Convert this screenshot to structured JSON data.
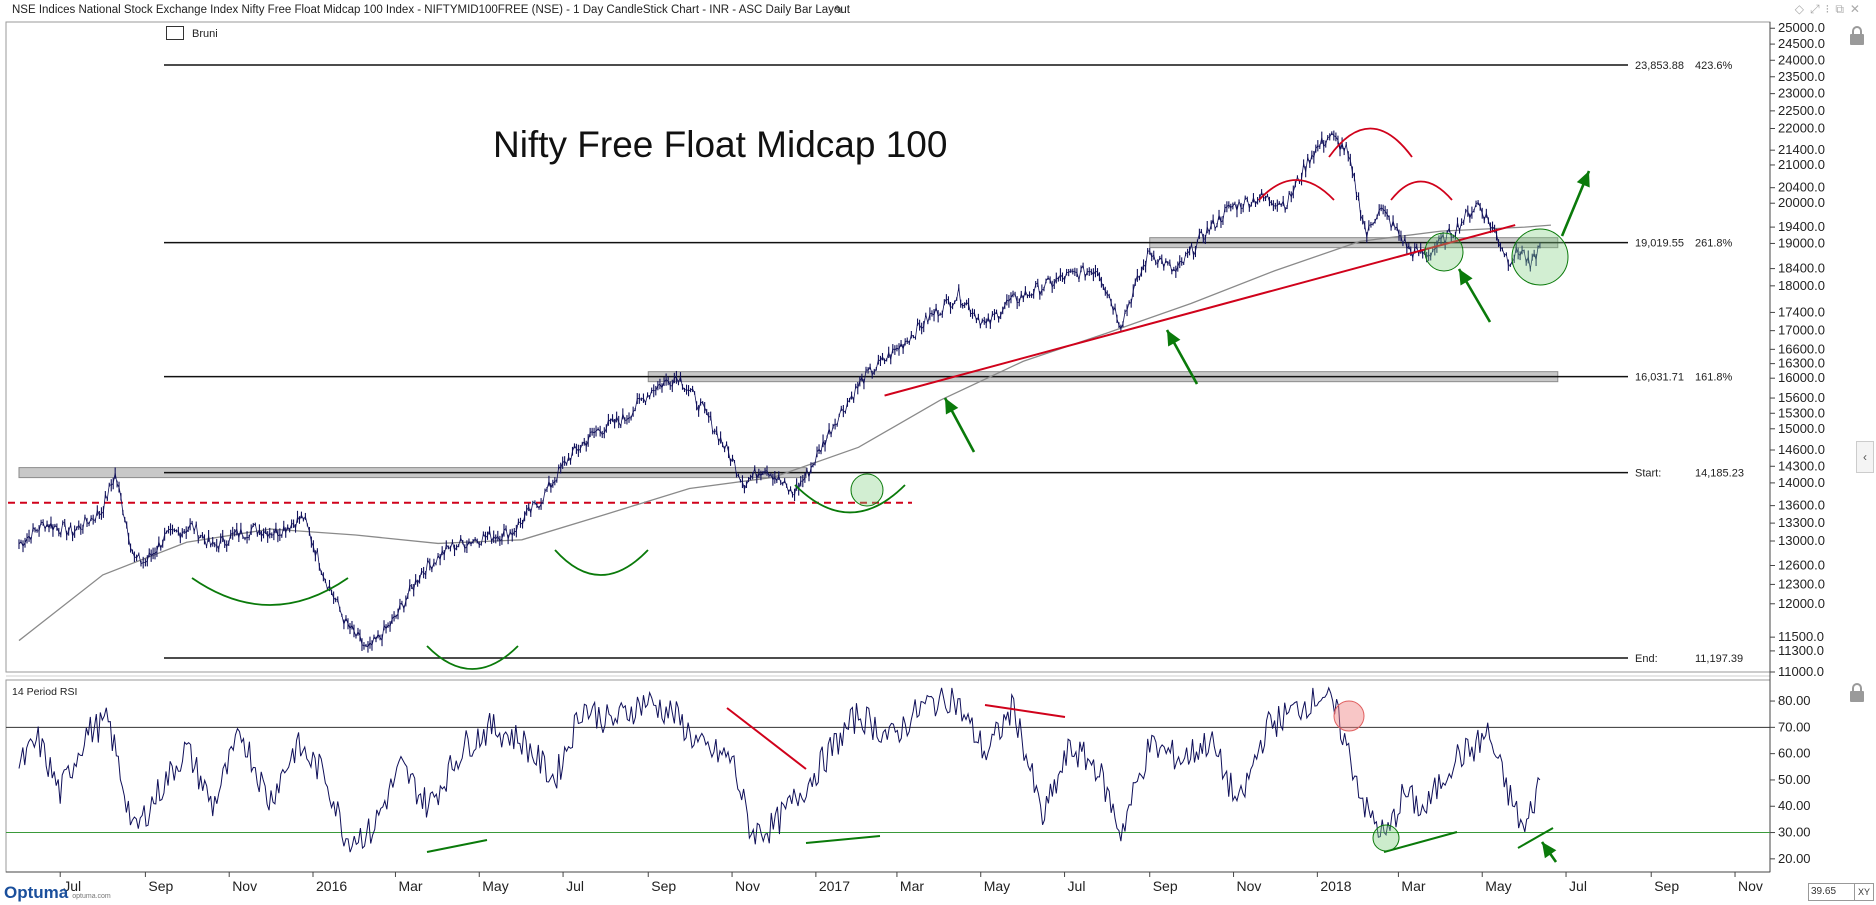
{
  "window": {
    "title": "NSE Indices National Stock Exchange Index Nifty Free Float Midcap 100 Index - NIFTYMID100FREE (NSE) - 1 Day CandleStick Chart - INR - ASC Daily Bar Layout"
  },
  "toolbar": {
    "bruni_label": "Bruni"
  },
  "footer": {
    "logo": "Optuma",
    "logo_sub": "optuma.com",
    "zoom": "39.65",
    "zoom_mode": "XY"
  },
  "colors": {
    "price": "#10105a",
    "ma": "#8a8a8a",
    "annotation_red": "#d0021b",
    "annotation_green": "#0a7a0a",
    "green_fill": "#7fcf7f",
    "red_fill": "#f08080",
    "band": "#c8c8c8"
  },
  "chart_data": [
    {
      "type": "line",
      "title": "Nifty Free Float Midcap 100",
      "xlabel": "",
      "ylabel": "",
      "y_scale": "log",
      "ylim": [
        11000,
        25200
      ],
      "x_ticks": [
        "Jul",
        "Sep",
        "Nov",
        "2016",
        "Mar",
        "May",
        "Jul",
        "Sep",
        "Nov",
        "2017",
        "Mar",
        "May",
        "Jul",
        "Sep",
        "Nov",
        "2018",
        "Mar",
        "May",
        "Jul",
        "Sep",
        "Nov"
      ],
      "y_ticks": [
        "25000.0",
        "24500.0",
        "24000.0",
        "23500.0",
        "23000.0",
        "22500.0",
        "22000.0",
        "21400.0",
        "21000.0",
        "20400.0",
        "20000.0",
        "19400.0",
        "19000.0",
        "18400.0",
        "18000.0",
        "17400.0",
        "17000.0",
        "16600.0",
        "16300.0",
        "16000.0",
        "15600.0",
        "15300.0",
        "15000.0",
        "14600.0",
        "14300.0",
        "14000.0",
        "13600.0",
        "13300.0",
        "13000.0",
        "12600.0",
        "12300.0",
        "12000.0",
        "11500.0",
        "11300.0",
        "11000.0"
      ],
      "series": [
        {
          "key": "price",
          "x": [
            "2015-06-01",
            "2015-06-20",
            "2015-07-10",
            "2015-07-31",
            "2015-08-10",
            "2015-08-24",
            "2015-09-01",
            "2015-09-15",
            "2015-10-05",
            "2015-10-20",
            "2015-11-05",
            "2015-11-20",
            "2015-12-05",
            "2015-12-25",
            "2016-01-10",
            "2016-01-25",
            "2016-02-10",
            "2016-02-29",
            "2016-03-20",
            "2016-04-10",
            "2016-05-01",
            "2016-05-25",
            "2016-06-15",
            "2016-07-05",
            "2016-07-25",
            "2016-08-15",
            "2016-09-05",
            "2016-09-23",
            "2016-10-15",
            "2016-11-10",
            "2016-11-25",
            "2016-12-15",
            "2016-12-27",
            "2017-01-15",
            "2017-02-05",
            "2017-03-01",
            "2017-03-25",
            "2017-04-15",
            "2017-05-05",
            "2017-05-20",
            "2017-06-10",
            "2017-07-01",
            "2017-07-25",
            "2017-08-11",
            "2017-09-01",
            "2017-09-20",
            "2017-10-10",
            "2017-10-30",
            "2017-11-20",
            "2017-12-10",
            "2017-12-28",
            "2018-01-10",
            "2018-01-22",
            "2018-02-06",
            "2018-02-15",
            "2018-02-28",
            "2018-03-10",
            "2018-03-23",
            "2018-04-10",
            "2018-04-28",
            "2018-05-10",
            "2018-05-20",
            "2018-05-30",
            "2018-06-05",
            "2018-06-12"
          ],
          "values": [
            12950,
            13300,
            13150,
            13500,
            14150,
            12700,
            12650,
            13050,
            13250,
            12900,
            13100,
            13200,
            13150,
            13400,
            12400,
            11700,
            11300,
            11750,
            12500,
            12900,
            13050,
            13150,
            13700,
            14450,
            14950,
            15200,
            15800,
            16050,
            15200,
            14000,
            14300,
            13800,
            14200,
            15150,
            16000,
            16600,
            17300,
            17800,
            17100,
            17600,
            17900,
            18200,
            18400,
            17150,
            18800,
            18300,
            19200,
            19900,
            20150,
            20000,
            21300,
            21800,
            21400,
            19200,
            19900,
            19300,
            18800,
            18750,
            19300,
            20000,
            19300,
            18600,
            18850,
            18400,
            18950
          ]
        },
        {
          "key": "ma",
          "x": [
            "2015-06-01",
            "2015-08-01",
            "2015-10-01",
            "2015-12-01",
            "2016-02-01",
            "2016-04-01",
            "2016-06-01",
            "2016-08-01",
            "2016-10-01",
            "2016-12-01",
            "2017-02-01",
            "2017-04-01",
            "2017-06-01",
            "2017-08-01",
            "2017-10-01",
            "2017-12-01",
            "2018-02-01",
            "2018-04-01",
            "2018-06-01",
            "2018-06-20"
          ],
          "values": [
            11450,
            12450,
            12980,
            13200,
            13100,
            12960,
            13020,
            13450,
            13900,
            14100,
            14650,
            15550,
            16350,
            16950,
            17600,
            18350,
            19050,
            19300,
            19400,
            19450
          ]
        }
      ],
      "levels": [
        {
          "label": "23,853.88",
          "pct": "423.6%",
          "value": 23853.88
        },
        {
          "label": "19,019.55",
          "pct": "261.8%",
          "value": 19019.55
        },
        {
          "label": "16,031.71",
          "pct": "161.8%",
          "value": 16031.71
        },
        {
          "label": "Start:",
          "pct": "14,185.23",
          "value": 14185.23
        },
        {
          "label": "End:",
          "pct": "11,197.39",
          "value": 11197.39
        }
      ],
      "dashed_level": 13650,
      "resistance_bands": [
        {
          "from": "2015-06-01",
          "to": "2016-12-25",
          "value": 14185
        },
        {
          "from": "2016-09-01",
          "to": "2018-06-25",
          "value": 16031
        },
        {
          "from": "2017-09-01",
          "to": "2018-06-25",
          "value": 19019
        }
      ],
      "trendline": {
        "from": [
          "2017-02-20",
          15650
        ],
        "to": [
          "2018-05-25",
          19450
        ]
      }
    },
    {
      "type": "line",
      "title": "14 Period RSI",
      "ylim": [
        15,
        88
      ],
      "y_ticks": [
        "80.00",
        "70.00",
        "60.00",
        "50.00",
        "40.00",
        "30.00",
        "20.00"
      ],
      "ref_lines": [
        70,
        30
      ],
      "series": [
        {
          "key": "rsi",
          "x": [
            "2015-06-01",
            "2015-06-15",
            "2015-07-01",
            "2015-07-20",
            "2015-08-05",
            "2015-08-24",
            "2015-09-10",
            "2015-10-01",
            "2015-10-20",
            "2015-11-10",
            "2015-11-30",
            "2015-12-20",
            "2016-01-10",
            "2016-01-25",
            "2016-02-12",
            "2016-03-05",
            "2016-03-25",
            "2016-04-20",
            "2016-05-10",
            "2016-06-01",
            "2016-06-25",
            "2016-07-15",
            "2016-08-05",
            "2016-08-30",
            "2016-09-20",
            "2016-10-10",
            "2016-11-01",
            "2016-11-15",
            "2016-12-01",
            "2016-12-25",
            "2017-01-10",
            "2017-02-01",
            "2017-02-25",
            "2017-03-20",
            "2017-04-10",
            "2017-05-05",
            "2017-05-25",
            "2017-06-15",
            "2017-07-05",
            "2017-07-25",
            "2017-08-11",
            "2017-09-01",
            "2017-09-25",
            "2017-10-15",
            "2017-11-05",
            "2017-11-25",
            "2017-12-20",
            "2018-01-05",
            "2018-01-15",
            "2018-02-06",
            "2018-02-20",
            "2018-03-05",
            "2018-03-20",
            "2018-04-10",
            "2018-04-25",
            "2018-05-05",
            "2018-05-20",
            "2018-06-01",
            "2018-06-12"
          ],
          "values": [
            55,
            65,
            45,
            68,
            72,
            30,
            45,
            62,
            40,
            68,
            42,
            63,
            52,
            28,
            30,
            55,
            40,
            63,
            70,
            65,
            50,
            78,
            72,
            80,
            75,
            62,
            58,
            30,
            32,
            48,
            60,
            75,
            66,
            78,
            82,
            60,
            78,
            35,
            62,
            55,
            30,
            63,
            58,
            65,
            40,
            70,
            78,
            83,
            75,
            38,
            28,
            45,
            38,
            58,
            62,
            68,
            45,
            30,
            50
          ]
        }
      ],
      "annotations": "red divergence lines at RSI highs, green lines at RSI lows, pink circle at 2018 peak, green circles at RSI lows"
    }
  ]
}
